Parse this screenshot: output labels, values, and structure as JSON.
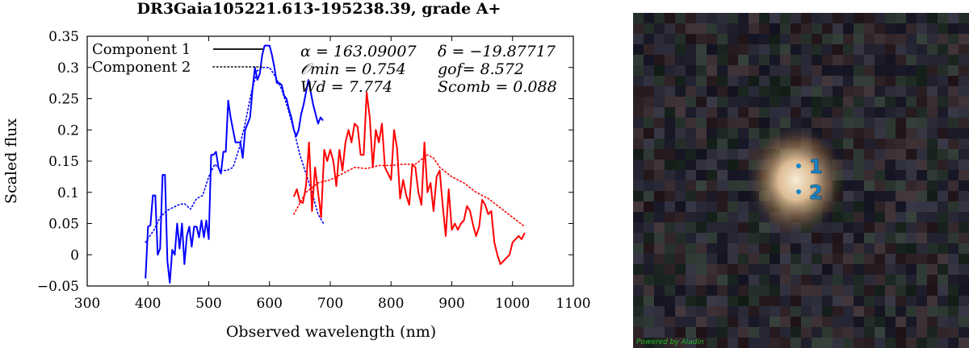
{
  "chart_data": {
    "type": "line",
    "title": "DR3Gaia105221.613-195238.39, grade A+",
    "xlabel": "Observed wavelength (nm)",
    "ylabel": "Scaled flux",
    "xlim": [
      300,
      1100
    ],
    "ylim": [
      -0.05,
      0.35
    ],
    "xticks": [
      300,
      400,
      500,
      600,
      700,
      800,
      900,
      1000,
      1100
    ],
    "yticks": [
      -0.05,
      0,
      0.05,
      0.1,
      0.15,
      0.2,
      0.25,
      0.3,
      0.35
    ],
    "xtick_labels": [
      "300",
      "400",
      "500",
      "600",
      "700",
      "800",
      "900",
      "1000",
      "1100"
    ],
    "ytick_labels": [
      "−0.05",
      "0",
      "0.05",
      "0.1",
      "0.15",
      "0.2",
      "0.25",
      "0.3",
      "0.35"
    ],
    "legend": {
      "position": "top-left",
      "entries": [
        {
          "label": "Component 1",
          "style": "solid"
        },
        {
          "label": "Component 2",
          "style": "dotted"
        }
      ]
    },
    "annotations": [
      "α = 163.09007",
      "δ = −19.87717",
      "𝒪min = 0.754",
      "gof= 8.572",
      "Wd = 7.774",
      "Scomb = 0.088"
    ],
    "colors": {
      "blue": "#0000ff",
      "red": "#ff0000"
    },
    "series": [
      {
        "name": "Component 1",
        "style": "solid",
        "color": "#0000ff",
        "x": [
          396,
          400,
          404,
          408,
          412,
          416,
          420,
          424,
          428,
          432,
          436,
          440,
          444,
          448,
          452,
          456,
          460,
          464,
          468,
          472,
          476,
          480,
          484,
          488,
          492,
          496,
          500,
          504,
          508,
          512,
          516,
          520,
          524,
          528,
          532,
          536,
          540,
          544,
          548,
          552,
          556,
          560,
          564,
          568,
          572,
          576,
          580,
          584,
          588,
          592,
          596,
          600,
          604,
          608,
          612,
          616,
          620,
          624,
          628,
          632,
          636,
          640,
          644,
          648,
          652,
          656,
          660,
          664,
          668,
          672,
          676,
          680,
          684,
          688
        ],
        "y": [
          -0.038,
          0.045,
          0.047,
          0.095,
          0.095,
          0.0,
          0.01,
          0.128,
          0.128,
          -0.01,
          -0.045,
          0.008,
          0.0,
          0.05,
          0.01,
          0.05,
          -0.015,
          0.03,
          0.045,
          0.013,
          0.045,
          0.045,
          0.028,
          0.055,
          0.028,
          0.055,
          0.025,
          0.16,
          0.16,
          0.165,
          0.14,
          0.13,
          0.165,
          0.165,
          0.247,
          0.22,
          0.2,
          0.18,
          0.18,
          0.18,
          0.155,
          0.2,
          0.21,
          0.22,
          0.265,
          0.3,
          0.28,
          0.29,
          0.32,
          0.335,
          0.335,
          0.335,
          0.32,
          0.3,
          0.275,
          0.275,
          0.272,
          0.255,
          0.25,
          0.233,
          0.22,
          0.2,
          0.19,
          0.2,
          0.225,
          0.24,
          0.26,
          0.28,
          0.26,
          0.24,
          0.225,
          0.21,
          0.22,
          0.215
        ]
      },
      {
        "name": "Component 2",
        "style": "dotted",
        "color": "#0000ff",
        "x": [
          396,
          410,
          420,
          430,
          440,
          450,
          460,
          470,
          480,
          490,
          500,
          510,
          520,
          530,
          540,
          550,
          560,
          570,
          580,
          590,
          600,
          610,
          620,
          630,
          640,
          650,
          660,
          670,
          680,
          690
        ],
        "y": [
          0.02,
          0.04,
          0.06,
          0.07,
          0.075,
          0.08,
          0.082,
          0.073,
          0.09,
          0.095,
          0.125,
          0.145,
          0.135,
          0.135,
          0.14,
          0.17,
          0.21,
          0.26,
          0.295,
          0.3,
          0.3,
          0.285,
          0.265,
          0.235,
          0.2,
          0.16,
          0.13,
          0.1,
          0.065,
          0.048
        ]
      },
      {
        "name": "Component 1",
        "style": "solid",
        "color": "#ff0000",
        "x": [
          640,
          645,
          650,
          655,
          660,
          665,
          670,
          675,
          680,
          685,
          690,
          695,
          700,
          705,
          710,
          715,
          720,
          725,
          730,
          735,
          740,
          745,
          750,
          755,
          760,
          765,
          770,
          775,
          780,
          785,
          790,
          795,
          800,
          805,
          810,
          815,
          820,
          825,
          830,
          835,
          840,
          845,
          850,
          855,
          860,
          865,
          870,
          875,
          880,
          885,
          890,
          895,
          900,
          905,
          910,
          915,
          920,
          925,
          930,
          935,
          940,
          945,
          950,
          955,
          960,
          965,
          970,
          975,
          980,
          985,
          990,
          995,
          1000,
          1005,
          1010,
          1015,
          1020
        ],
        "y": [
          0.093,
          0.105,
          0.085,
          0.083,
          0.11,
          0.18,
          0.07,
          0.14,
          0.1,
          0.06,
          0.168,
          0.15,
          0.168,
          0.15,
          0.11,
          0.168,
          0.135,
          0.18,
          0.2,
          0.18,
          0.21,
          0.205,
          0.16,
          0.16,
          0.26,
          0.22,
          0.14,
          0.2,
          0.18,
          0.21,
          0.14,
          0.13,
          0.12,
          0.2,
          0.17,
          0.09,
          0.12,
          0.095,
          0.08,
          0.145,
          0.14,
          0.1,
          0.08,
          0.18,
          0.1,
          0.115,
          0.07,
          0.125,
          0.135,
          0.08,
          0.03,
          0.105,
          0.04,
          0.05,
          0.04,
          0.05,
          0.055,
          0.078,
          0.07,
          0.048,
          0.03,
          0.045,
          0.088,
          0.08,
          0.065,
          0.07,
          0.02,
          0.0,
          -0.015,
          -0.01,
          -0.005,
          0.0,
          0.02,
          0.025,
          0.03,
          0.025,
          0.035
        ]
      },
      {
        "name": "Component 2",
        "style": "dotted",
        "color": "#ff0000",
        "x": [
          640,
          660,
          680,
          700,
          720,
          740,
          760,
          780,
          800,
          820,
          840,
          860,
          870,
          880,
          900,
          920,
          940,
          960,
          980,
          1000,
          1020
        ],
        "y": [
          0.065,
          0.1,
          0.115,
          0.12,
          0.13,
          0.14,
          0.138,
          0.143,
          0.143,
          0.145,
          0.145,
          0.16,
          0.155,
          0.14,
          0.125,
          0.115,
          0.1,
          0.09,
          0.075,
          0.06,
          0.045
        ]
      }
    ]
  },
  "sky": {
    "markers": [
      {
        "label": "1"
      },
      {
        "label": "2"
      }
    ],
    "credit": "Powered by Aladin",
    "marker_color": "#1a86c8"
  }
}
